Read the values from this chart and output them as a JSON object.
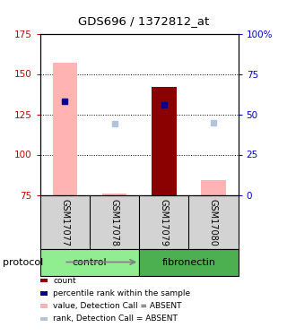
{
  "title": "GDS696 / 1372812_at",
  "samples": [
    "GSM17077",
    "GSM17078",
    "GSM17079",
    "GSM17080"
  ],
  "ylim_left": [
    75,
    175
  ],
  "ylim_right": [
    0,
    100
  ],
  "yticks_left": [
    75,
    100,
    125,
    150,
    175
  ],
  "yticks_right": [
    0,
    25,
    50,
    75,
    100
  ],
  "bar_bottom": 75,
  "absent_value_bars": {
    "GSM17077": 157,
    "GSM17078": 75.5,
    "GSM17079": null,
    "GSM17080": 84
  },
  "count_bars": {
    "GSM17077": null,
    "GSM17078": null,
    "GSM17079": 142,
    "GSM17080": null
  },
  "absent_rank_dots": {
    "GSM17077": null,
    "GSM17078": 119,
    "GSM17079": null,
    "GSM17080": 120
  },
  "percentile_rank_dots": {
    "GSM17077": 133,
    "GSM17078": null,
    "GSM17079": 131,
    "GSM17080": null
  },
  "absent_value_color": "#ffb3b3",
  "count_color": "#8b0000",
  "absent_rank_color": "#b0c4de",
  "percentile_rank_color": "#00008b",
  "bar_width": 0.5,
  "legend_items": [
    {
      "label": "count",
      "color": "#8b0000"
    },
    {
      "label": "percentile rank within the sample",
      "color": "#00008b"
    },
    {
      "label": "value, Detection Call = ABSENT",
      "color": "#ffb3b3"
    },
    {
      "label": "rank, Detection Call = ABSENT",
      "color": "#b0c4de"
    }
  ],
  "label_area_color": "#d3d3d3",
  "left_axis_color": "#cc0000",
  "right_axis_color": "#0000cc",
  "groups_info": [
    {
      "name": "control",
      "start": 1,
      "end": 2,
      "color": "#90ee90"
    },
    {
      "name": "fibronectin",
      "start": 3,
      "end": 4,
      "color": "#4caf50"
    }
  ],
  "grid_lines": [
    100,
    125,
    150
  ]
}
